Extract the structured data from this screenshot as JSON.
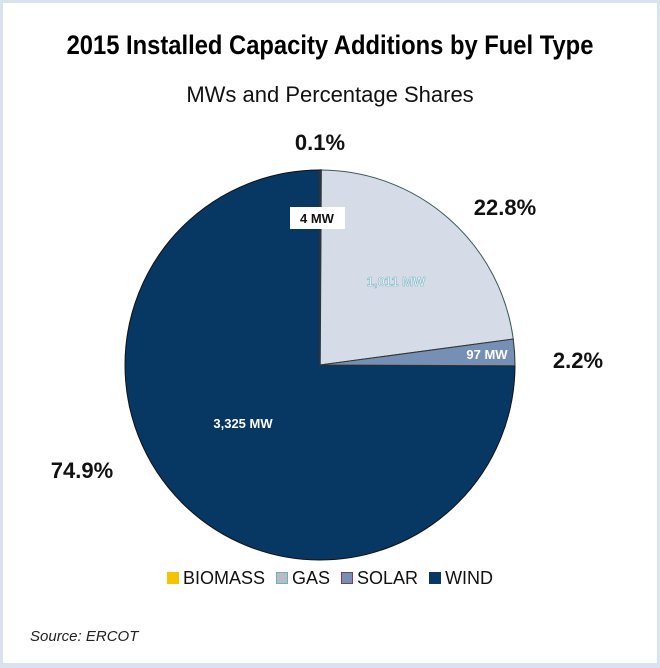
{
  "chart_data": {
    "type": "pie",
    "title": "2015 Installed Capacity Additions by Fuel Type",
    "subtitle": "MWs and Percentage Shares",
    "categories": [
      "BIOMASS",
      "GAS",
      "SOLAR",
      "WIND"
    ],
    "values_mw": [
      4,
      1011,
      97,
      3325
    ],
    "value_labels": [
      "4 MW",
      "1,011 MW",
      "97 MW",
      "3,325 MW"
    ],
    "percentages": [
      0.1,
      22.8,
      2.2,
      74.9
    ],
    "percent_labels": [
      "0.1%",
      "22.8%",
      "2.2%",
      "74.9%"
    ],
    "colors": [
      "#f5c400",
      "#d5dce8",
      "#7590b4",
      "#073763"
    ],
    "legend": [
      "BIOMASS",
      "GAS",
      "SOLAR",
      "WIND"
    ],
    "legend_position": "bottom",
    "start_angle": "12 o'clock, clockwise"
  },
  "source": "Source: ERCOT"
}
